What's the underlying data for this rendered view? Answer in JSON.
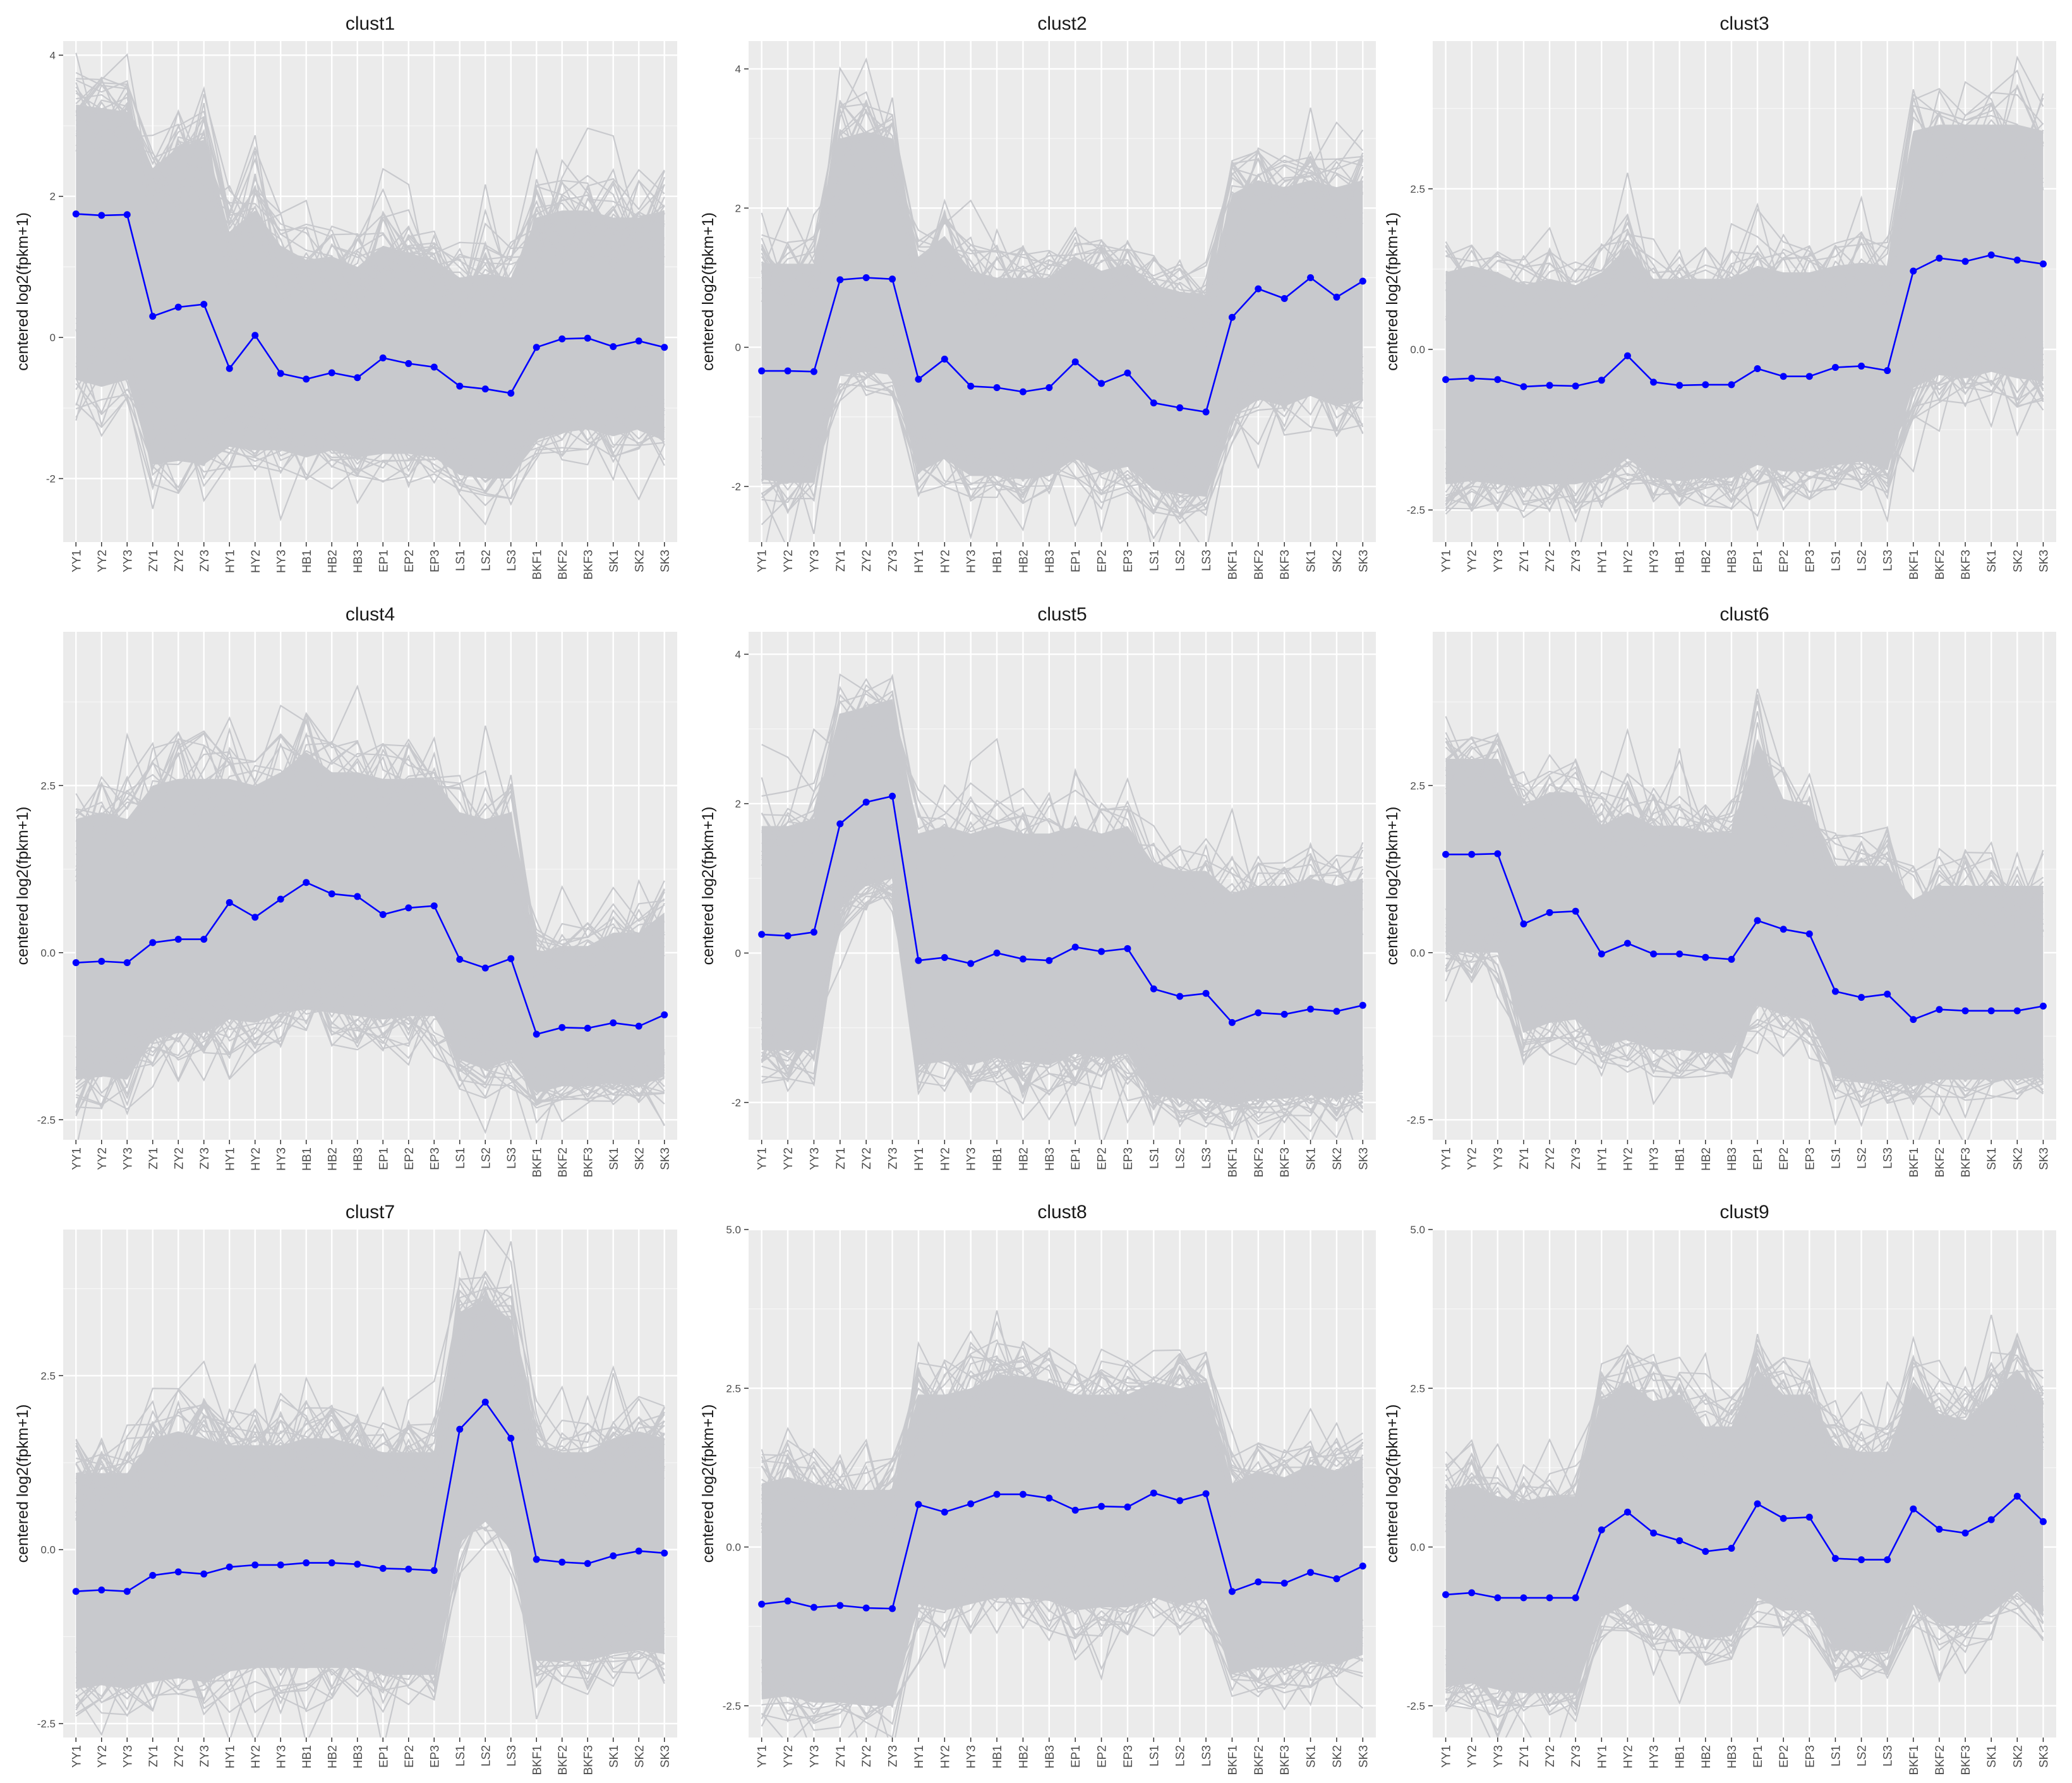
{
  "figure": {
    "background": "#ffffff",
    "panel_background": "#ebebeb",
    "grid_color": "#ffffff",
    "profile_color": "#c8c9cd",
    "centroid_color": "#0000ff",
    "ylabel": "centered log2(fpkm+1)"
  },
  "chart_data": [
    {
      "type": "line",
      "title": "clust1",
      "ylabel": "centered log2(fpkm+1)",
      "categories": [
        "YY1",
        "YY2",
        "YY3",
        "ZY1",
        "ZY2",
        "ZY3",
        "HY1",
        "HY2",
        "HY3",
        "HB1",
        "HB2",
        "HB3",
        "EP1",
        "EP2",
        "EP3",
        "LS1",
        "LS2",
        "LS3",
        "BKF1",
        "BKF2",
        "BKF3",
        "SK1",
        "SK2",
        "SK3"
      ],
      "ylim": [
        -2.9,
        4.2
      ],
      "yticks": [
        -2,
        0,
        2,
        4
      ],
      "ytick_labels": [
        "-2",
        "0",
        "2",
        "4"
      ],
      "grid": true,
      "series": [
        {
          "values": [
            1.75,
            1.73,
            1.74,
            0.3,
            0.43,
            0.47,
            -0.44,
            0.03,
            -0.51,
            -0.59,
            -0.5,
            -0.57,
            -0.29,
            -0.37,
            -0.42,
            -0.69,
            -0.73,
            -0.79,
            -0.14,
            -0.02,
            -0.01,
            -0.13,
            -0.05,
            -0.14
          ]
        }
      ],
      "band_upper": [
        3.3,
        3.25,
        3.2,
        2.4,
        2.7,
        2.8,
        1.5,
        1.8,
        1.3,
        1.1,
        1.15,
        1.0,
        1.3,
        1.2,
        1.1,
        0.85,
        0.9,
        0.85,
        1.7,
        1.8,
        1.8,
        1.7,
        1.7,
        1.8
      ],
      "band_lower": [
        -0.6,
        -0.7,
        -0.6,
        -1.8,
        -1.75,
        -1.8,
        -1.55,
        -1.6,
        -1.6,
        -1.7,
        -1.6,
        -1.7,
        -1.65,
        -1.65,
        -1.7,
        -1.95,
        -2.0,
        -2.0,
        -1.45,
        -1.35,
        -1.3,
        -1.4,
        -1.3,
        -1.45
      ]
    },
    {
      "type": "line",
      "title": "clust2",
      "ylabel": "centered log2(fpkm+1)",
      "categories": [
        "YY1",
        "YY2",
        "YY3",
        "ZY1",
        "ZY2",
        "ZY3",
        "HY1",
        "HY2",
        "HY3",
        "HB1",
        "HB2",
        "HB3",
        "EP1",
        "EP2",
        "EP3",
        "LS1",
        "LS2",
        "LS3",
        "BKF1",
        "BKF2",
        "BKF3",
        "SK1",
        "SK2",
        "SK3"
      ],
      "ylim": [
        -2.8,
        4.4
      ],
      "yticks": [
        -2,
        0,
        2,
        4
      ],
      "ytick_labels": [
        "-2",
        "0",
        "2",
        "4"
      ],
      "grid": true,
      "series": [
        {
          "values": [
            -0.34,
            -0.34,
            -0.35,
            0.97,
            1.0,
            0.98,
            -0.46,
            -0.17,
            -0.56,
            -0.58,
            -0.64,
            -0.58,
            -0.21,
            -0.52,
            -0.37,
            -0.8,
            -0.87,
            -0.93,
            0.43,
            0.84,
            0.7,
            1.0,
            0.72,
            0.95
          ]
        }
      ],
      "band_upper": [
        1.2,
        1.2,
        1.2,
        3.0,
        3.1,
        3.0,
        1.3,
        1.6,
        1.1,
        1.0,
        1.0,
        1.0,
        1.3,
        1.1,
        1.2,
        0.9,
        0.8,
        0.75,
        2.2,
        2.4,
        2.3,
        2.4,
        2.3,
        2.4
      ],
      "band_lower": [
        -1.9,
        -1.95,
        -1.95,
        -0.4,
        -0.35,
        -0.4,
        -1.8,
        -1.6,
        -1.85,
        -1.85,
        -1.9,
        -1.85,
        -1.6,
        -1.8,
        -1.7,
        -2.05,
        -2.1,
        -2.15,
        -1.0,
        -0.75,
        -0.85,
        -0.7,
        -0.85,
        -0.75
      ]
    },
    {
      "type": "line",
      "title": "clust3",
      "ylabel": "centered log2(fpkm+1)",
      "categories": [
        "YY1",
        "YY2",
        "YY3",
        "ZY1",
        "ZY2",
        "ZY3",
        "HY1",
        "HY2",
        "HY3",
        "HB1",
        "HB2",
        "HB3",
        "EP1",
        "EP2",
        "EP3",
        "LS1",
        "LS2",
        "LS3",
        "BKF1",
        "BKF2",
        "BKF3",
        "SK1",
        "SK2",
        "SK3"
      ],
      "ylim": [
        -3.0,
        4.8
      ],
      "yticks": [
        -2.5,
        0,
        2.5
      ],
      "ytick_labels": [
        "-2.5",
        "0.0",
        "2.5"
      ],
      "grid": true,
      "series": [
        {
          "values": [
            -0.47,
            -0.45,
            -0.47,
            -0.58,
            -0.56,
            -0.57,
            -0.48,
            -0.1,
            -0.51,
            -0.56,
            -0.55,
            -0.55,
            -0.3,
            -0.42,
            -0.42,
            -0.28,
            -0.26,
            -0.33,
            1.22,
            1.42,
            1.37,
            1.47,
            1.39,
            1.33
          ]
        }
      ],
      "band_upper": [
        1.2,
        1.3,
        1.2,
        1.0,
        1.1,
        1.0,
        1.2,
        1.6,
        1.1,
        1.1,
        1.1,
        1.1,
        1.3,
        1.2,
        1.2,
        1.3,
        1.35,
        1.3,
        3.4,
        3.5,
        3.5,
        3.5,
        3.5,
        3.4
      ],
      "band_lower": [
        -2.1,
        -2.05,
        -2.1,
        -2.15,
        -2.1,
        -2.1,
        -2.0,
        -1.7,
        -2.0,
        -2.05,
        -2.0,
        -2.0,
        -1.8,
        -1.9,
        -1.9,
        -1.8,
        -1.75,
        -1.85,
        -0.6,
        -0.4,
        -0.45,
        -0.35,
        -0.45,
        -0.5
      ]
    },
    {
      "type": "line",
      "title": "clust4",
      "ylabel": "centered log2(fpkm+1)",
      "categories": [
        "YY1",
        "YY2",
        "YY3",
        "ZY1",
        "ZY2",
        "ZY3",
        "HY1",
        "HY2",
        "HY3",
        "HB1",
        "HB2",
        "HB3",
        "EP1",
        "EP2",
        "EP3",
        "LS1",
        "LS2",
        "LS3",
        "BKF1",
        "BKF2",
        "BKF3",
        "SK1",
        "SK2",
        "SK3"
      ],
      "ylim": [
        -2.8,
        4.8
      ],
      "yticks": [
        -2.5,
        0,
        2.5
      ],
      "ytick_labels": [
        "-2.5",
        "0.0",
        "2.5"
      ],
      "grid": true,
      "series": [
        {
          "values": [
            -0.15,
            -0.13,
            -0.15,
            0.15,
            0.2,
            0.2,
            0.75,
            0.53,
            0.8,
            1.05,
            0.88,
            0.84,
            0.57,
            0.67,
            0.7,
            -0.1,
            -0.23,
            -0.09,
            -1.22,
            -1.12,
            -1.13,
            -1.05,
            -1.1,
            -0.93
          ]
        }
      ],
      "band_upper": [
        2.0,
        2.1,
        2.0,
        2.5,
        2.6,
        2.6,
        2.6,
        2.5,
        2.7,
        3.0,
        2.7,
        2.7,
        2.6,
        2.6,
        2.6,
        2.1,
        2.0,
        2.1,
        0.0,
        0.1,
        0.1,
        0.3,
        0.3,
        0.6
      ],
      "band_lower": [
        -1.9,
        -1.85,
        -1.9,
        -1.3,
        -1.2,
        -1.2,
        -1.0,
        -1.05,
        -0.9,
        -0.85,
        -0.9,
        -0.95,
        -1.0,
        -0.95,
        -0.95,
        -1.6,
        -1.75,
        -1.6,
        -2.1,
        -2.0,
        -2.0,
        -1.95,
        -2.0,
        -1.85
      ]
    },
    {
      "type": "line",
      "title": "clust5",
      "ylabel": "centered log2(fpkm+1)",
      "categories": [
        "YY1",
        "YY2",
        "YY3",
        "ZY1",
        "ZY2",
        "ZY3",
        "HY1",
        "HY2",
        "HY3",
        "HB1",
        "HB2",
        "HB3",
        "EP1",
        "EP2",
        "EP3",
        "LS1",
        "LS2",
        "LS3",
        "BKF1",
        "BKF2",
        "BKF3",
        "SK1",
        "SK2",
        "SK3"
      ],
      "ylim": [
        -2.5,
        4.3
      ],
      "yticks": [
        -2,
        0,
        2,
        4
      ],
      "ytick_labels": [
        "-2",
        "0",
        "2",
        "4"
      ],
      "grid": true,
      "series": [
        {
          "values": [
            0.25,
            0.23,
            0.28,
            1.73,
            2.02,
            2.1,
            -0.1,
            -0.06,
            -0.14,
            0.0,
            -0.08,
            -0.1,
            0.08,
            0.02,
            0.06,
            -0.48,
            -0.58,
            -0.54,
            -0.93,
            -0.8,
            -0.82,
            -0.75,
            -0.78,
            -0.7
          ]
        }
      ],
      "band_upper": [
        1.7,
        1.7,
        1.8,
        3.2,
        3.3,
        3.4,
        1.6,
        1.7,
        1.6,
        1.7,
        1.6,
        1.6,
        1.7,
        1.6,
        1.7,
        1.2,
        1.1,
        1.1,
        0.8,
        0.9,
        0.9,
        1.0,
        0.9,
        1.0
      ],
      "band_lower": [
        -1.3,
        -1.3,
        -1.3,
        0.6,
        0.9,
        1.0,
        -1.5,
        -1.45,
        -1.5,
        -1.4,
        -1.45,
        -1.5,
        -1.35,
        -1.4,
        -1.35,
        -1.9,
        -1.95,
        -1.95,
        -2.05,
        -1.95,
        -1.95,
        -1.9,
        -1.95,
        -1.85
      ]
    },
    {
      "type": "line",
      "title": "clust6",
      "ylabel": "centered log2(fpkm+1)",
      "categories": [
        "YY1",
        "YY2",
        "YY3",
        "ZY1",
        "ZY2",
        "ZY3",
        "HY1",
        "HY2",
        "HY3",
        "HB1",
        "HB2",
        "HB3",
        "EP1",
        "EP2",
        "EP3",
        "LS1",
        "LS2",
        "LS3",
        "BKF1",
        "BKF2",
        "BKF3",
        "SK1",
        "SK2",
        "SK3"
      ],
      "ylim": [
        -2.8,
        4.8
      ],
      "yticks": [
        -2.5,
        0,
        2.5
      ],
      "ytick_labels": [
        "-2.5",
        "0.0",
        "2.5"
      ],
      "grid": true,
      "series": [
        {
          "values": [
            1.47,
            1.47,
            1.48,
            0.43,
            0.6,
            0.62,
            -0.02,
            0.14,
            -0.02,
            -0.02,
            -0.07,
            -0.1,
            0.48,
            0.35,
            0.28,
            -0.58,
            -0.67,
            -0.62,
            -1.0,
            -0.85,
            -0.87,
            -0.87,
            -0.87,
            -0.8
          ]
        }
      ],
      "band_upper": [
        2.9,
        2.9,
        2.9,
        2.2,
        2.4,
        2.4,
        1.9,
        2.1,
        1.9,
        1.9,
        1.8,
        1.8,
        3.2,
        2.3,
        2.2,
        1.3,
        1.3,
        1.3,
        0.8,
        1.0,
        1.0,
        1.0,
        1.0,
        1.0
      ],
      "band_lower": [
        0.0,
        0.0,
        0.0,
        -1.2,
        -1.05,
        -1.0,
        -1.4,
        -1.3,
        -1.45,
        -1.45,
        -1.5,
        -1.5,
        -0.8,
        -0.9,
        -1.0,
        -1.85,
        -1.95,
        -1.9,
        -2.0,
        -1.9,
        -1.9,
        -1.9,
        -1.9,
        -1.85
      ]
    },
    {
      "type": "line",
      "title": "clust7",
      "ylabel": "centered log2(fpkm+1)",
      "categories": [
        "YY1",
        "YY2",
        "YY3",
        "ZY1",
        "ZY2",
        "ZY3",
        "HY1",
        "HY2",
        "HY3",
        "HB1",
        "HB2",
        "HB3",
        "EP1",
        "EP2",
        "EP3",
        "LS1",
        "LS2",
        "LS3",
        "BKF1",
        "BKF2",
        "BKF3",
        "SK1",
        "SK2",
        "SK3"
      ],
      "ylim": [
        -2.7,
        4.6
      ],
      "yticks": [
        -2.5,
        0,
        2.5
      ],
      "ytick_labels": [
        "-2.5",
        "0.0",
        "2.5"
      ],
      "grid": true,
      "series": [
        {
          "values": [
            -0.6,
            -0.58,
            -0.6,
            -0.37,
            -0.32,
            -0.35,
            -0.25,
            -0.22,
            -0.22,
            -0.19,
            -0.19,
            -0.21,
            -0.27,
            -0.28,
            -0.3,
            1.73,
            2.12,
            1.6,
            -0.14,
            -0.18,
            -0.2,
            -0.09,
            -0.02,
            -0.05
          ]
        }
      ],
      "band_upper": [
        1.1,
        1.1,
        1.1,
        1.6,
        1.7,
        1.6,
        1.5,
        1.5,
        1.5,
        1.6,
        1.6,
        1.5,
        1.4,
        1.4,
        1.4,
        3.4,
        3.6,
        3.3,
        1.5,
        1.4,
        1.4,
        1.6,
        1.7,
        1.6
      ],
      "band_lower": [
        -2.0,
        -1.95,
        -2.0,
        -1.9,
        -1.85,
        -1.9,
        -1.75,
        -1.7,
        -1.7,
        -1.7,
        -1.7,
        -1.7,
        -1.8,
        -1.8,
        -1.8,
        0.1,
        0.4,
        0.0,
        -1.6,
        -1.6,
        -1.6,
        -1.5,
        -1.45,
        -1.5
      ]
    },
    {
      "type": "line",
      "title": "clust8",
      "ylabel": "centered log2(fpkm+1)",
      "categories": [
        "YY1",
        "YY2",
        "YY3",
        "ZY1",
        "ZY2",
        "ZY3",
        "HY1",
        "HY2",
        "HY3",
        "HB1",
        "HB2",
        "HB3",
        "EP1",
        "EP2",
        "EP3",
        "LS1",
        "LS2",
        "LS3",
        "BKF1",
        "BKF2",
        "BKF3",
        "SK1",
        "SK2",
        "SK3"
      ],
      "ylim": [
        -3.0,
        5.0
      ],
      "yticks": [
        -2.5,
        0,
        2.5,
        5
      ],
      "ytick_labels": [
        "-2.5",
        "0.0",
        "2.5",
        "5.0"
      ],
      "grid": true,
      "series": [
        {
          "values": [
            -0.9,
            -0.85,
            -0.95,
            -0.92,
            -0.96,
            -0.97,
            0.67,
            0.55,
            0.68,
            0.83,
            0.83,
            0.77,
            0.58,
            0.64,
            0.63,
            0.85,
            0.73,
            0.84,
            -0.7,
            -0.55,
            -0.57,
            -0.4,
            -0.5,
            -0.3
          ]
        }
      ],
      "band_upper": [
        1.0,
        1.1,
        1.0,
        0.9,
        0.9,
        0.9,
        2.4,
        2.4,
        2.5,
        2.7,
        2.7,
        2.6,
        2.4,
        2.4,
        2.4,
        2.6,
        2.5,
        2.6,
        1.0,
        1.2,
        1.1,
        1.3,
        1.2,
        1.4
      ],
      "band_lower": [
        -2.4,
        -2.35,
        -2.45,
        -2.45,
        -2.5,
        -2.5,
        -0.9,
        -1.0,
        -0.9,
        -0.8,
        -0.8,
        -0.85,
        -1.0,
        -0.95,
        -0.95,
        -0.8,
        -0.9,
        -0.8,
        -2.0,
        -1.9,
        -1.9,
        -1.8,
        -1.85,
        -1.7
      ]
    },
    {
      "type": "line",
      "title": "clust9",
      "ylabel": "centered log2(fpkm+1)",
      "categories": [
        "YY1",
        "YY2",
        "YY3",
        "ZY1",
        "ZY2",
        "ZY3",
        "HY1",
        "HY2",
        "HY3",
        "HB1",
        "HB2",
        "HB3",
        "EP1",
        "EP2",
        "EP3",
        "LS1",
        "LS2",
        "LS3",
        "BKF1",
        "BKF2",
        "BKF3",
        "SK1",
        "SK2",
        "SK3"
      ],
      "ylim": [
        -3.0,
        5.0
      ],
      "yticks": [
        -2.5,
        0,
        2.5,
        5
      ],
      "ytick_labels": [
        "-2.5",
        "0.0",
        "2.5",
        "5.0"
      ],
      "grid": true,
      "series": [
        {
          "values": [
            -0.75,
            -0.72,
            -0.8,
            -0.8,
            -0.8,
            -0.8,
            0.27,
            0.55,
            0.22,
            0.1,
            -0.07,
            -0.02,
            0.68,
            0.45,
            0.47,
            -0.18,
            -0.2,
            -0.2,
            0.6,
            0.28,
            0.22,
            0.43,
            0.8,
            0.4
          ]
        }
      ],
      "band_upper": [
        0.9,
        1.0,
        0.8,
        0.7,
        0.8,
        0.8,
        2.3,
        2.6,
        2.3,
        2.4,
        1.9,
        1.9,
        2.8,
        2.4,
        2.4,
        1.6,
        1.5,
        1.5,
        2.6,
        2.1,
        2.0,
        2.4,
        2.8,
        2.3
      ],
      "band_lower": [
        -2.2,
        -2.15,
        -2.25,
        -2.3,
        -2.3,
        -2.3,
        -1.1,
        -0.9,
        -1.2,
        -1.3,
        -1.45,
        -1.4,
        -0.8,
        -1.0,
        -1.0,
        -1.6,
        -1.65,
        -1.65,
        -0.9,
        -1.2,
        -1.25,
        -1.05,
        -0.7,
        -1.1
      ]
    }
  ]
}
